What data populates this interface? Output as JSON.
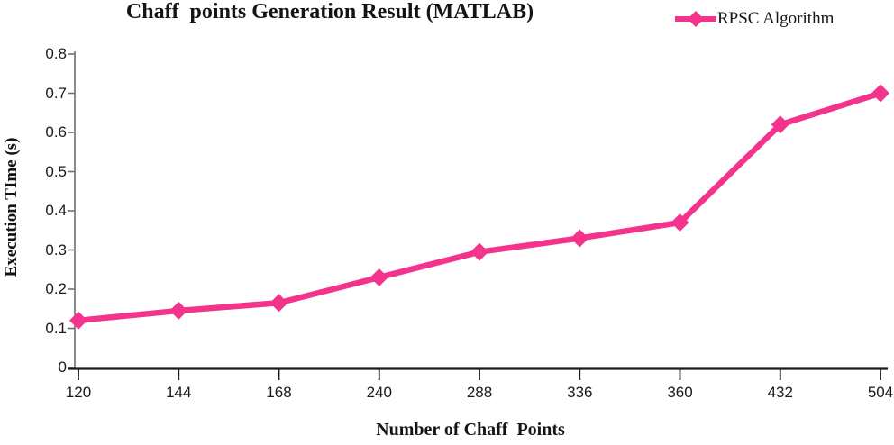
{
  "chart_data": {
    "type": "line",
    "title": "Chaff  points Generation Result (MATLAB)",
    "xlabel": "Number of Chaff  Points",
    "ylabel": "Execution TIme (s)",
    "legend_position": "top-right",
    "grid": false,
    "categories": [
      "120",
      "144",
      "168",
      "240",
      "288",
      "336",
      "360",
      "432",
      "504"
    ],
    "series": [
      {
        "name": "RPSC Algorithm",
        "values": [
          0.12,
          0.145,
          0.165,
          0.23,
          0.295,
          0.33,
          0.37,
          0.62,
          0.7
        ]
      }
    ],
    "ylim": [
      0,
      0.8
    ],
    "ytick_labels": [
      "0",
      "0.1",
      "0.2",
      "0.3",
      "0.4",
      "0.5",
      "0.6",
      "0.7",
      "0.8"
    ],
    "colors": {
      "line": "#F4348C",
      "y_axis": "#6f6f6f",
      "x_axis": "#1a1a1a",
      "text": "#141414"
    }
  }
}
